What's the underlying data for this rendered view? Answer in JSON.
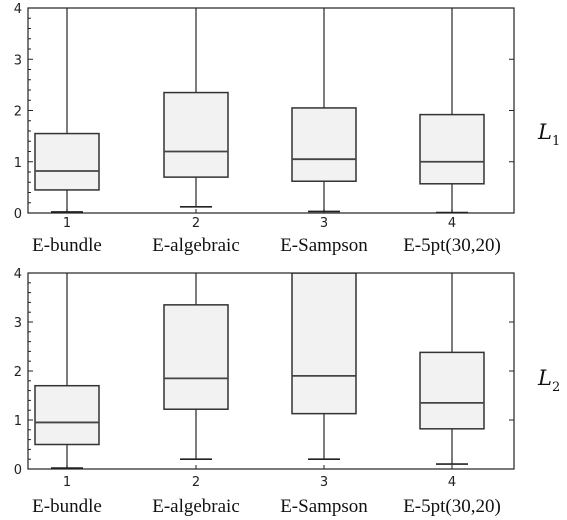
{
  "chart_data": [
    {
      "type": "box",
      "panel_label": "L",
      "panel_subscript": "1",
      "ylim": [
        0,
        4
      ],
      "y_ticks": [
        "0",
        "1",
        "2",
        "3",
        "4"
      ],
      "x_ticks": [
        "1",
        "2",
        "3",
        "4"
      ],
      "categories": [
        "E-bundle",
        "E-algebraic",
        "E-Sampson",
        "E-5pt(30,20)"
      ],
      "box_fill": "#f2f2f2",
      "boxes": [
        {
          "whisker_low": 0.02,
          "q1": 0.45,
          "median": 0.82,
          "q3": 1.55,
          "whisker_high": 4.2
        },
        {
          "whisker_low": 0.12,
          "q1": 0.7,
          "median": 1.2,
          "q3": 2.35,
          "whisker_high": 4.2
        },
        {
          "whisker_low": 0.03,
          "q1": 0.62,
          "median": 1.05,
          "q3": 2.05,
          "whisker_high": 4.2
        },
        {
          "whisker_low": 0.01,
          "q1": 0.57,
          "median": 1.0,
          "q3": 1.92,
          "whisker_high": 4.2
        }
      ]
    },
    {
      "type": "box",
      "panel_label": "L",
      "panel_subscript": "2",
      "ylim": [
        0,
        4
      ],
      "y_ticks": [
        "0",
        "1",
        "2",
        "3",
        "4"
      ],
      "x_ticks": [
        "1",
        "2",
        "3",
        "4"
      ],
      "categories": [
        "E-bundle",
        "E-algebraic",
        "E-Sampson",
        "E-5pt(30,20)"
      ],
      "box_fill": "#f2f2f2",
      "boxes": [
        {
          "whisker_low": 0.02,
          "q1": 0.5,
          "median": 0.95,
          "q3": 1.7,
          "whisker_high": 4.2
        },
        {
          "whisker_low": 0.2,
          "q1": 1.22,
          "median": 1.85,
          "q3": 3.35,
          "whisker_high": 4.2
        },
        {
          "whisker_low": 0.2,
          "q1": 1.13,
          "median": 1.9,
          "q3": 4.0,
          "whisker_high": 4.2
        },
        {
          "whisker_low": 0.1,
          "q1": 0.82,
          "median": 1.35,
          "q3": 2.38,
          "whisker_high": 4.2
        }
      ]
    }
  ]
}
